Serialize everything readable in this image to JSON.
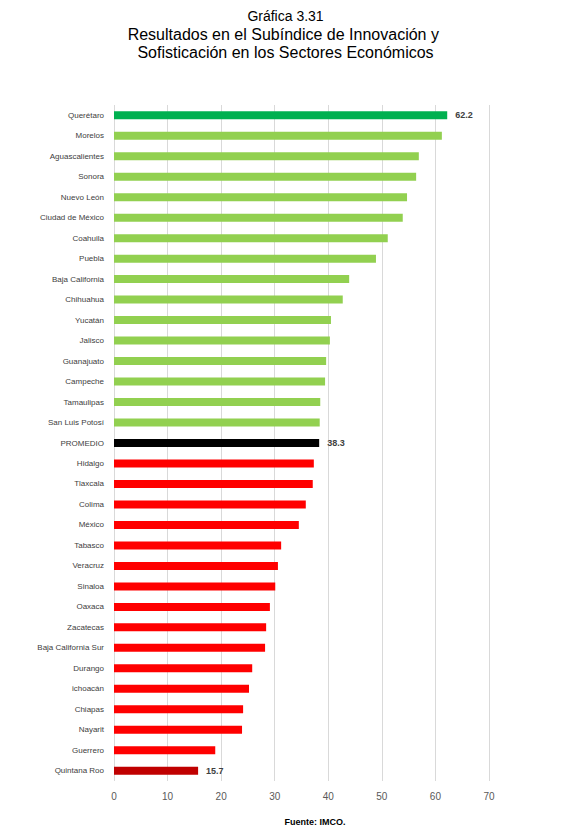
{
  "chart_data": {
    "type": "bar",
    "title": "Gráfica 3.31",
    "subtitle": "Resultados en el Subíndice de Innovación y Sofisticación en los Sectores Económicos",
    "source": "Fuente: IMCO.",
    "orientation": "horizontal",
    "categories": [
      "Querétaro",
      "Morelos",
      "Aguascalientes",
      "Sonora",
      "Nuevo León",
      "Ciudad de México",
      "Coahuila",
      "Puebla",
      "Baja California",
      "Chihuahua",
      "Yucatán",
      "Jalisco",
      "Guanajuato",
      "Campeche",
      "Tamaulipas",
      "San Luis Potosí",
      "PROMEDIO",
      "Hidalgo",
      "Tlaxcala",
      "Colima",
      "México",
      "Tabasco",
      "Veracruz",
      "Sinaloa",
      "Oaxaca",
      "Zacatecas",
      "Baja California Sur",
      "Durango",
      "ichoacán",
      "Chiapas",
      "Nayarit",
      "Guerrero",
      "Quintana Roo"
    ],
    "values": [
      62.2,
      61.2,
      56.9,
      56.4,
      54.7,
      53.9,
      51.1,
      48.9,
      43.9,
      42.7,
      40.5,
      40.3,
      39.6,
      39.4,
      38.5,
      38.4,
      38.3,
      37.3,
      37.1,
      35.8,
      34.5,
      31.2,
      30.6,
      30.1,
      29.1,
      28.4,
      28.2,
      25.8,
      25.2,
      24.1,
      23.9,
      18.9,
      15.7
    ],
    "colors": [
      "#00b050",
      "#92d050",
      "#92d050",
      "#92d050",
      "#92d050",
      "#92d050",
      "#92d050",
      "#92d050",
      "#92d050",
      "#92d050",
      "#92d050",
      "#92d050",
      "#92d050",
      "#92d050",
      "#92d050",
      "#92d050",
      "#000000",
      "#ff0000",
      "#ff0000",
      "#ff0000",
      "#ff0000",
      "#ff0000",
      "#ff0000",
      "#ff0000",
      "#ff0000",
      "#ff0000",
      "#ff0000",
      "#ff0000",
      "#ff0000",
      "#ff0000",
      "#ff0000",
      "#ff0000",
      "#c00000"
    ],
    "data_labels": true,
    "value_labels": [
      "62.2",
      null,
      null,
      null,
      null,
      null,
      null,
      null,
      null,
      null,
      null,
      null,
      null,
      null,
      null,
      null,
      "38.3",
      null,
      null,
      null,
      null,
      null,
      null,
      null,
      null,
      null,
      null,
      null,
      null,
      null,
      null,
      null,
      "15.7"
    ],
    "xlim": [
      0,
      70
    ],
    "xticks": [
      0,
      10,
      20,
      30,
      40,
      50,
      60,
      70
    ],
    "grid": true
  }
}
